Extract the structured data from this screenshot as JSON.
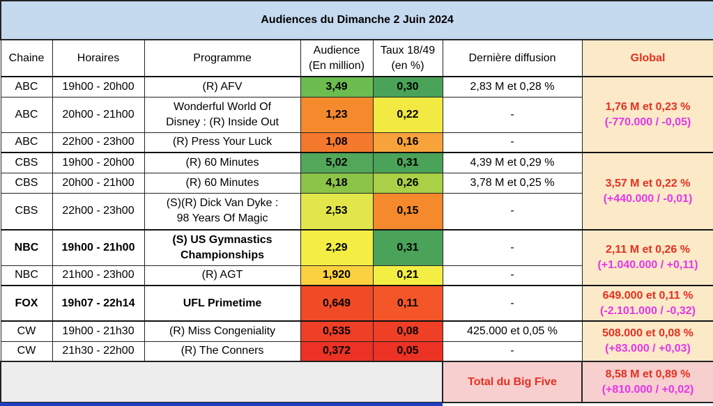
{
  "title": "Audiences du Dimanche 2 Juin 2024",
  "headers": {
    "chaine": "Chaine",
    "horaires": "Horaires",
    "programme": "Programme",
    "audience_1": "Audience",
    "audience_2": "(En million)",
    "taux_1": "Taux 18/49",
    "taux_2": "(en %)",
    "derniere": "Dernière diffusion",
    "global": "Global"
  },
  "rows": [
    {
      "chaine": "ABC",
      "horaires": "19h00 - 20h00",
      "prog1": "(R) AFV",
      "prog2": "",
      "audience": "3,49",
      "taux": "0,30",
      "derniere": "2,83 M et 0,28 %",
      "aud_color": "#6cbd50",
      "taux_color": "#4aa359"
    },
    {
      "chaine": "ABC",
      "horaires": "20h00 - 21h00",
      "prog1": "Wonderful World Of",
      "prog2": "Disney : (R) Inside Out",
      "audience": "1,23",
      "taux": "0,22",
      "derniere": "-",
      "aud_color": "#f58a2c",
      "taux_color": "#f2ea42"
    },
    {
      "chaine": "ABC",
      "horaires": "22h00 - 23h00",
      "prog1": "(R) Press Your Luck",
      "prog2": "",
      "audience": "1,08",
      "taux": "0,16",
      "derniere": "-",
      "aud_color": "#f4792c",
      "taux_color": "#f7a23a"
    },
    {
      "chaine": "CBS",
      "horaires": "19h00 - 20h00",
      "prog1": "(R) 60 Minutes",
      "prog2": "",
      "audience": "5,02",
      "taux": "0,31",
      "derniere": "4,39 M et 0,29 %",
      "aud_color": "#52a75a",
      "taux_color": "#4aa359"
    },
    {
      "chaine": "CBS",
      "horaires": "20h00 - 21h00",
      "prog1": "(R) 60 Minutes",
      "prog2": "",
      "audience": "4,18",
      "taux": "0,26",
      "derniere": "3,78 M et 0,25 %",
      "aud_color": "#8cc447",
      "taux_color": "#a9d046"
    },
    {
      "chaine": "CBS",
      "horaires": "22h00 - 23h00",
      "prog1": "(S)(R) Dick Van Dyke :",
      "prog2": "98 Years Of Magic",
      "audience": "2,53",
      "taux": "0,15",
      "derniere": "-",
      "aud_color": "#e2e64b",
      "taux_color": "#f58a2c"
    },
    {
      "chaine": "NBC",
      "horaires": "19h00 - 21h00",
      "prog1": "(S) US Gymnastics",
      "prog2": "Championships",
      "audience": "2,29",
      "taux": "0,31",
      "derniere": "-",
      "aud_color": "#f4ee44",
      "taux_color": "#4aa359",
      "bold": true
    },
    {
      "chaine": "NBC",
      "horaires": "21h00 - 23h00",
      "prog1": "(R) AGT",
      "prog2": "",
      "audience": "1,920",
      "taux": "0,21",
      "derniere": "-",
      "aud_color": "#fbd13f",
      "taux_color": "#f4ee44"
    },
    {
      "chaine": "FOX",
      "horaires": "19h07 - 22h14",
      "prog1": "UFL Primetime",
      "prog2": "",
      "audience": "0,649",
      "taux": "0,11",
      "derniere": "-",
      "aud_color": "#ef4b27",
      "taux_color": "#f4562a",
      "bold": true
    },
    {
      "chaine": "CW",
      "horaires": "19h00 - 21h30",
      "prog1": "(R) Miss Congeniality",
      "prog2": "",
      "audience": "0,535",
      "taux": "0,08",
      "derniere": "425.000 et 0,05 %",
      "aud_color": "#ef3f26",
      "taux_color": "#ef3f26"
    },
    {
      "chaine": "CW",
      "horaires": "21h30 - 22h00",
      "prog1": "(R) The Conners",
      "prog2": "",
      "audience": "0,372",
      "taux": "0,05",
      "derniere": "-",
      "aud_color": "#ec3224",
      "taux_color": "#ec3224"
    }
  ],
  "globals": {
    "abc": {
      "line1": "1,76 M et 0,23 %",
      "line2": "(-770.000 / -0,05)"
    },
    "cbs": {
      "line1": "3,57 M et 0,22 %",
      "line2": "(+440.000 / -0,01)"
    },
    "nbc": {
      "line1": "2,11 M et 0,26 %",
      "line2": "(+1.040.000 / +0,11)"
    },
    "fox": {
      "line1": "649.000 et 0,11 %",
      "line2": "(-2.101.000 / -0,32)"
    },
    "cw": {
      "line1": "508.000 et 0,08 %",
      "line2": "(+83.000 / +0,03)"
    }
  },
  "footer": {
    "label": "Total du Big Five",
    "line1": "8,58 M et 0,89 %",
    "line2": "(+810.000 / +0,02)"
  },
  "colors": {
    "title_bg": "#c5d9ef",
    "global_bg": "#fce9c8",
    "global_red": "#e53020",
    "global_magenta": "#e636e6",
    "footer_bg": "#f7cfcf"
  }
}
